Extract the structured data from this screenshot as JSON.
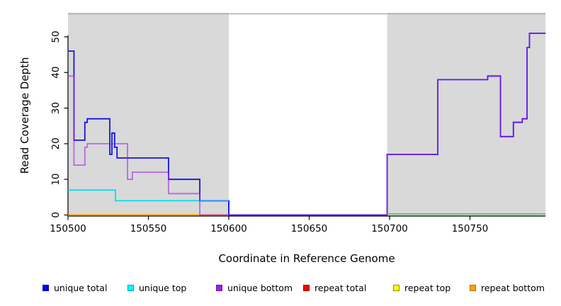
{
  "chart_data": {
    "type": "line",
    "subtype": "step-coverage-plot",
    "title": "",
    "xlabel": "Coordinate in Reference Genome",
    "ylabel": "Read Coverage Depth",
    "xlim": [
      150500,
      150797
    ],
    "ylim": [
      0,
      57
    ],
    "grid": false,
    "x_ticks": [
      150500,
      150550,
      150600,
      150650,
      150700,
      150750
    ],
    "y_ticks": [
      0,
      10,
      20,
      30,
      40,
      50
    ],
    "shade_color": "#D9D9D9",
    "shaded_regions": [
      [
        150500,
        150600
      ],
      [
        150698.5,
        150797
      ]
    ],
    "top_rule": {
      "color": "#ADADAD"
    },
    "axis_color": "#000000",
    "series": [
      {
        "name": "repeat total",
        "color": "#DD0000",
        "opacity": 1,
        "end": 150600,
        "steps": [
          [
            150500,
            0
          ]
        ]
      },
      {
        "name": "repeat top",
        "color": "#F0F000",
        "opacity": 1,
        "end": 150600,
        "steps": [
          [
            150500,
            0
          ]
        ]
      },
      {
        "name": "repeat bottom",
        "color": "#FF9D00",
        "opacity": 1,
        "end": 150600,
        "steps": [
          [
            150500,
            0
          ]
        ]
      },
      {
        "name": "unique top",
        "color": "#00DFEE",
        "opacity": 1,
        "end": 150600,
        "steps": [
          [
            150500,
            7
          ],
          [
            150529.5,
            4
          ],
          [
            150600,
            0
          ]
        ]
      },
      {
        "name": "unique total",
        "color": "#1212E6",
        "opacity": 1,
        "end": 150797,
        "steps": [
          [
            150500,
            46
          ],
          [
            150503.7,
            21
          ],
          [
            150510.5,
            26
          ],
          [
            150512,
            27
          ],
          [
            150526,
            17
          ],
          [
            150527.3,
            23
          ],
          [
            150529,
            19
          ],
          [
            150530.5,
            16
          ],
          [
            150562.5,
            10
          ],
          [
            150582,
            4
          ],
          [
            150600,
            0
          ],
          [
            150698.5,
            17
          ],
          [
            150730,
            38
          ],
          [
            150761,
            39
          ],
          [
            150769,
            22
          ],
          [
            150777,
            26
          ],
          [
            150782.5,
            27
          ],
          [
            150785.5,
            47
          ],
          [
            150787,
            51
          ]
        ]
      },
      {
        "name": "unique bottom",
        "color": "#A020F0",
        "opacity": 0.62,
        "end": 150797,
        "steps": [
          [
            150500,
            39
          ],
          [
            150503.7,
            14
          ],
          [
            150510.5,
            19
          ],
          [
            150512,
            20
          ],
          [
            150537,
            10
          ],
          [
            150540,
            12
          ],
          [
            150562.5,
            6
          ],
          [
            150582,
            0
          ],
          [
            150698.5,
            17
          ],
          [
            150730,
            38
          ],
          [
            150761,
            39
          ],
          [
            150769,
            22
          ],
          [
            150777,
            26
          ],
          [
            150782.5,
            27
          ],
          [
            150785.5,
            47
          ],
          [
            150787,
            51
          ]
        ]
      }
    ],
    "overlay_segments": [
      {
        "name": "unique-total-over-unique-top-highlight",
        "color": "#1E90FF",
        "y": 4,
        "x0": 150582,
        "x1": 150600
      },
      {
        "name": "baseline-green-segment",
        "color": "#68BE68",
        "y": 0.3,
        "x0": 150698.5,
        "x1": 150797
      }
    ],
    "legend_position": "bottom",
    "legend": [
      {
        "label": "unique total",
        "fill": "#0000FF",
        "border": "#0000A8"
      },
      {
        "label": "unique top",
        "fill": "#00FFFF",
        "border": "#009FAD"
      },
      {
        "label": "unique bottom",
        "fill": "#A020F0",
        "border": "#6C12A6"
      },
      {
        "label": "repeat total",
        "fill": "#FF0000",
        "border": "#9E0000"
      },
      {
        "label": "repeat top",
        "fill": "#FFFF00",
        "border": "#8F8F00"
      },
      {
        "label": "repeat bottom",
        "fill": "#FFA500",
        "border": "#B36B00"
      }
    ]
  }
}
